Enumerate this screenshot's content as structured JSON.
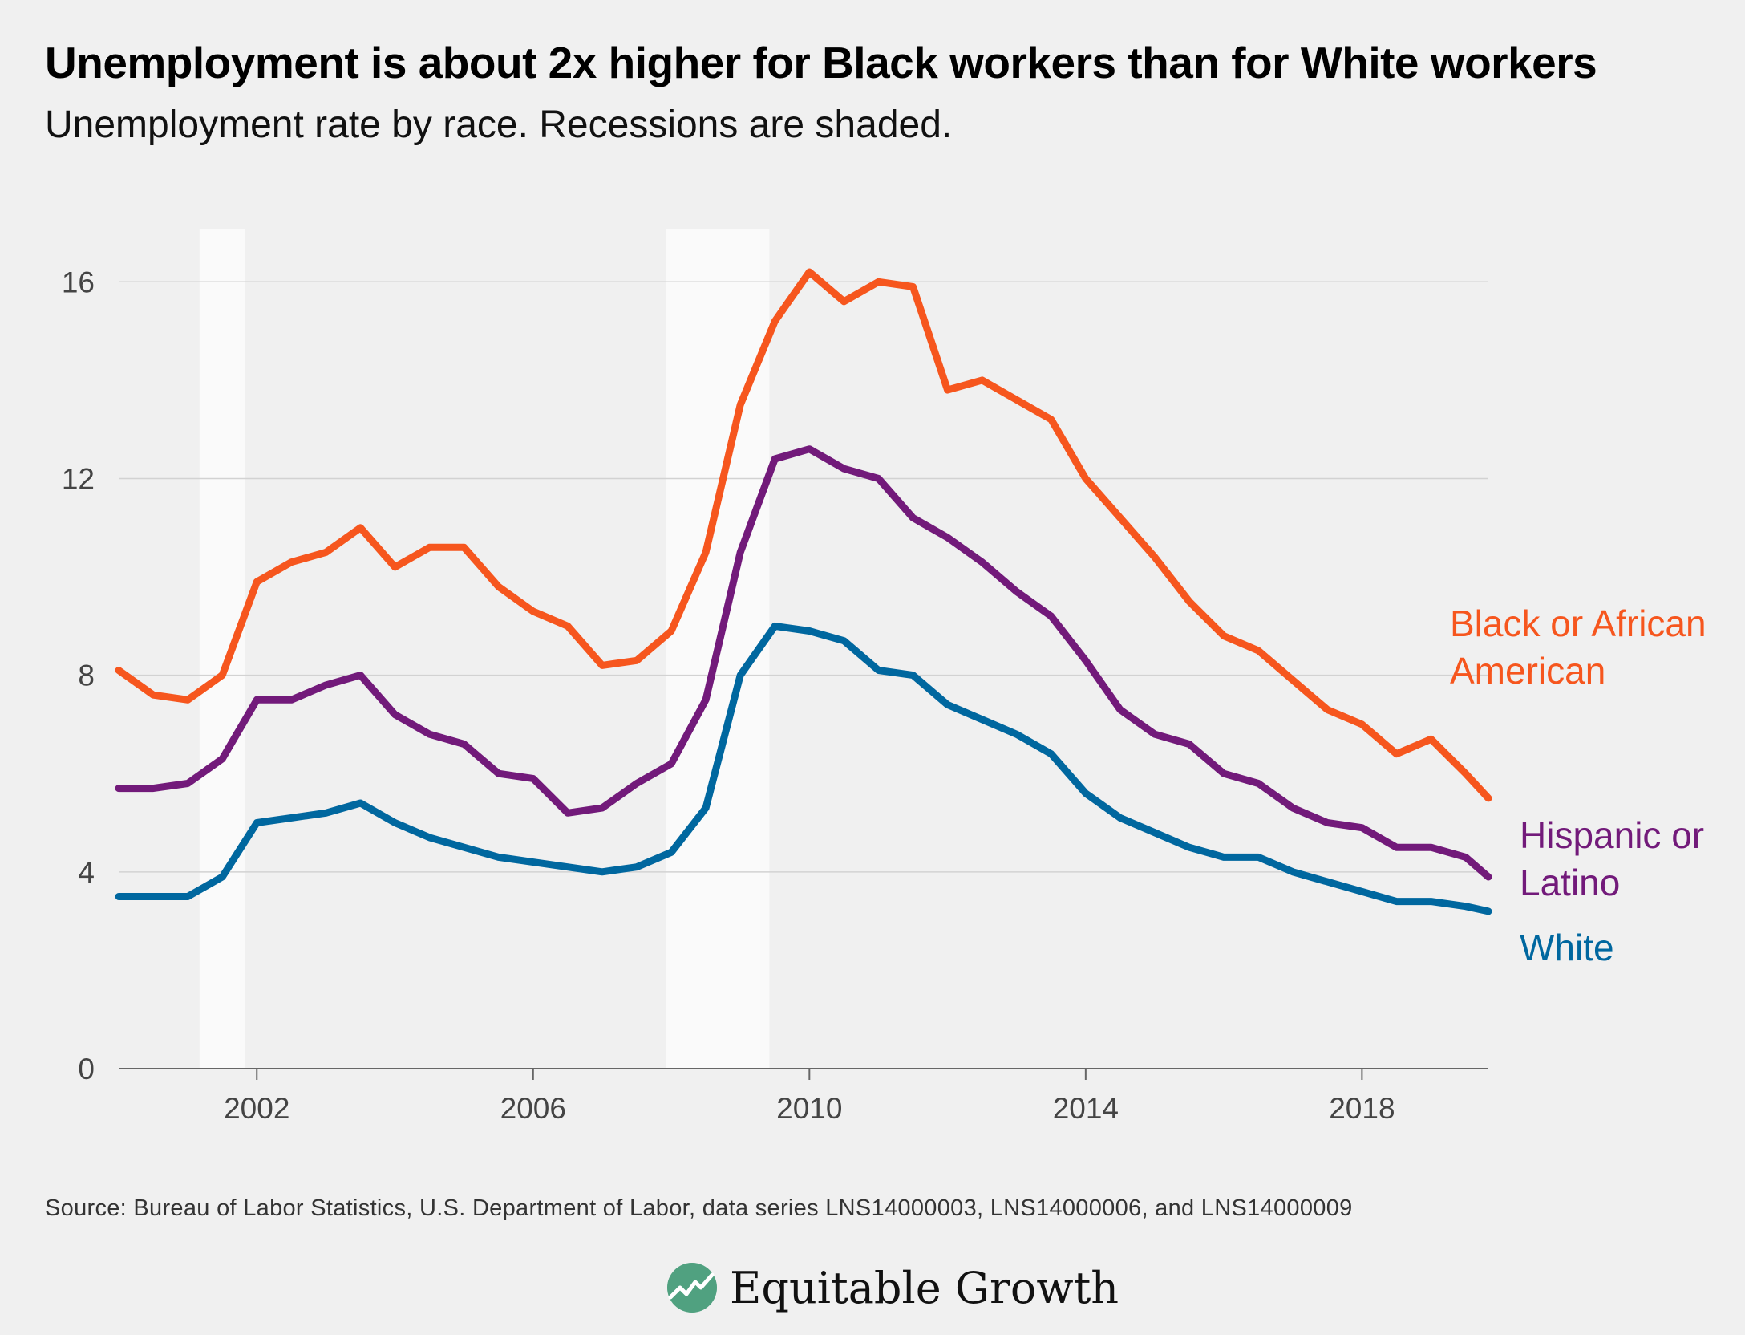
{
  "title": "Unemployment is about 2x higher for Black workers than for White workers",
  "subtitle": "Unemployment rate by race. Recessions are shaded.",
  "source": "Source: Bureau of Labor Statistics, U.S. Department of Labor, data series LNS14000003, LNS14000006, and LNS14000009",
  "logo": {
    "text": "Equitable Growth",
    "icon": "trend-line-logo-icon"
  },
  "colors": {
    "background": "#f0f0f0",
    "black_series": "#f6561e",
    "hispanic_series": "#721a7a",
    "white_series": "#00679f",
    "recession": "#fafafa",
    "grid": "#d2d2d2"
  },
  "chart_data": {
    "type": "line",
    "title": "Unemployment is about 2x higher for Black workers than for White workers",
    "subtitle": "Unemployment rate by race. Recessions are shaded.",
    "xlabel": "",
    "ylabel": "",
    "xlim": [
      2000.0,
      2019.83
    ],
    "ylim": [
      0,
      17
    ],
    "x_ticks": [
      2002,
      2006,
      2010,
      2014,
      2018
    ],
    "x_tick_labels": [
      "2002",
      "2006",
      "2010",
      "2014",
      "2018"
    ],
    "y_ticks": [
      0,
      4,
      8,
      12,
      16
    ],
    "y_tick_labels": [
      "0",
      "4",
      "8",
      "12",
      "16"
    ],
    "grid": true,
    "legend": "direct labels at right end of each line",
    "recessions": [
      [
        2001.17,
        2001.83
      ],
      [
        2007.92,
        2009.42
      ]
    ],
    "x": [
      2000.0,
      2000.5,
      2001.0,
      2001.5,
      2002.0,
      2002.5,
      2003.0,
      2003.5,
      2004.0,
      2004.5,
      2005.0,
      2005.5,
      2006.0,
      2006.5,
      2007.0,
      2007.5,
      2008.0,
      2008.5,
      2009.0,
      2009.5,
      2010.0,
      2010.5,
      2011.0,
      2011.5,
      2012.0,
      2012.5,
      2013.0,
      2013.5,
      2014.0,
      2014.5,
      2015.0,
      2015.5,
      2016.0,
      2016.5,
      2017.0,
      2017.5,
      2018.0,
      2018.5,
      2019.0,
      2019.5,
      2019.83
    ],
    "series": [
      {
        "name": "Black or African American",
        "color": "#f6561e",
        "values": [
          8.1,
          7.6,
          7.5,
          8.0,
          9.9,
          10.3,
          10.5,
          11.0,
          10.2,
          10.6,
          10.6,
          9.8,
          9.3,
          9.0,
          8.2,
          8.3,
          8.9,
          10.5,
          13.5,
          15.2,
          16.2,
          15.6,
          16.0,
          15.9,
          13.8,
          14.0,
          13.6,
          13.2,
          12.0,
          11.2,
          10.4,
          9.5,
          8.8,
          8.5,
          7.9,
          7.3,
          7.0,
          6.4,
          6.7,
          6.0,
          5.5
        ]
      },
      {
        "name": "Hispanic or Latino",
        "color": "#721a7a",
        "values": [
          5.7,
          5.7,
          5.8,
          6.3,
          7.5,
          7.5,
          7.8,
          8.0,
          7.2,
          6.8,
          6.6,
          6.0,
          5.9,
          5.2,
          5.3,
          5.8,
          6.2,
          7.5,
          10.5,
          12.4,
          12.6,
          12.2,
          12.0,
          11.2,
          10.8,
          10.3,
          9.7,
          9.2,
          8.3,
          7.3,
          6.8,
          6.6,
          6.0,
          5.8,
          5.3,
          5.0,
          4.9,
          4.5,
          4.5,
          4.3,
          3.9
        ]
      },
      {
        "name": "White",
        "color": "#00679f",
        "values": [
          3.5,
          3.5,
          3.5,
          3.9,
          5.0,
          5.1,
          5.2,
          5.4,
          5.0,
          4.7,
          4.5,
          4.3,
          4.2,
          4.1,
          4.0,
          4.1,
          4.4,
          5.3,
          8.0,
          9.0,
          8.9,
          8.7,
          8.1,
          8.0,
          7.4,
          7.1,
          6.8,
          6.4,
          5.6,
          5.1,
          4.8,
          4.5,
          4.3,
          4.3,
          4.0,
          3.8,
          3.6,
          3.4,
          3.4,
          3.3,
          3.2
        ]
      }
    ]
  }
}
